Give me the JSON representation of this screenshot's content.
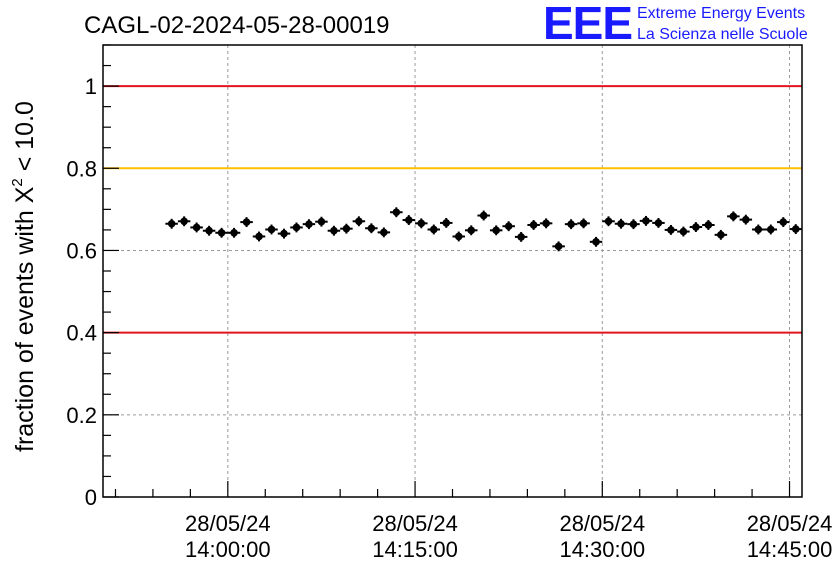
{
  "chart_data": {
    "type": "scatter",
    "title": "CAGL-02-2024-05-28-00019",
    "ylabel_prefix": "fraction of events with ",
    "ylabel_symbol": "X",
    "ylabel_sup": "2",
    "ylabel_suffix": " < 10.0",
    "xlabel": "",
    "ylim": [
      0,
      1.1
    ],
    "xlim_minutes": [
      -10,
      46
    ],
    "grid": true,
    "x_ticks": [
      {
        "minutes": 0,
        "date": "28/05/24",
        "time": "14:00:00"
      },
      {
        "minutes": 15,
        "date": "28/05/24",
        "time": "14:15:00"
      },
      {
        "minutes": 30,
        "date": "28/05/24",
        "time": "14:30:00"
      },
      {
        "minutes": 45,
        "date": "28/05/24",
        "time": "14:45:00"
      }
    ],
    "y_ticks": [
      {
        "value": 0,
        "label": "0"
      },
      {
        "value": 0.2,
        "label": "0.2"
      },
      {
        "value": 0.4,
        "label": "0.4"
      },
      {
        "value": 0.6,
        "label": "0.6"
      },
      {
        "value": 0.8,
        "label": "0.8"
      },
      {
        "value": 1.0,
        "label": "1"
      }
    ],
    "reference_lines": [
      {
        "y": 1.0,
        "color": "#e3141b"
      },
      {
        "y": 0.8,
        "color": "#ffc000"
      },
      {
        "y": 0.4,
        "color": "#e3141b"
      }
    ],
    "points": [
      {
        "x": -4.5,
        "y": 0.665
      },
      {
        "x": -3.5,
        "y": 0.671
      },
      {
        "x": -2.5,
        "y": 0.656
      },
      {
        "x": -1.5,
        "y": 0.648
      },
      {
        "x": -0.5,
        "y": 0.643
      },
      {
        "x": 0.5,
        "y": 0.643
      },
      {
        "x": 1.5,
        "y": 0.669
      },
      {
        "x": 2.5,
        "y": 0.634
      },
      {
        "x": 3.5,
        "y": 0.651
      },
      {
        "x": 4.5,
        "y": 0.641
      },
      {
        "x": 5.5,
        "y": 0.656
      },
      {
        "x": 6.5,
        "y": 0.664
      },
      {
        "x": 7.5,
        "y": 0.67
      },
      {
        "x": 8.5,
        "y": 0.648
      },
      {
        "x": 9.5,
        "y": 0.653
      },
      {
        "x": 10.5,
        "y": 0.671
      },
      {
        "x": 11.5,
        "y": 0.654
      },
      {
        "x": 12.5,
        "y": 0.644
      },
      {
        "x": 13.5,
        "y": 0.693
      },
      {
        "x": 14.5,
        "y": 0.674
      },
      {
        "x": 15.5,
        "y": 0.666
      },
      {
        "x": 16.5,
        "y": 0.651
      },
      {
        "x": 17.5,
        "y": 0.667
      },
      {
        "x": 18.5,
        "y": 0.634
      },
      {
        "x": 19.5,
        "y": 0.649
      },
      {
        "x": 20.5,
        "y": 0.685
      },
      {
        "x": 21.5,
        "y": 0.649
      },
      {
        "x": 22.5,
        "y": 0.659
      },
      {
        "x": 23.5,
        "y": 0.633
      },
      {
        "x": 24.5,
        "y": 0.662
      },
      {
        "x": 25.5,
        "y": 0.666
      },
      {
        "x": 26.5,
        "y": 0.61
      },
      {
        "x": 27.5,
        "y": 0.664
      },
      {
        "x": 28.5,
        "y": 0.666
      },
      {
        "x": 29.5,
        "y": 0.621
      },
      {
        "x": 30.5,
        "y": 0.671
      },
      {
        "x": 31.5,
        "y": 0.665
      },
      {
        "x": 32.5,
        "y": 0.664
      },
      {
        "x": 33.5,
        "y": 0.672
      },
      {
        "x": 34.5,
        "y": 0.667
      },
      {
        "x": 35.5,
        "y": 0.65
      },
      {
        "x": 36.5,
        "y": 0.646
      },
      {
        "x": 37.5,
        "y": 0.657
      },
      {
        "x": 38.5,
        "y": 0.662
      },
      {
        "x": 39.5,
        "y": 0.638
      },
      {
        "x": 40.5,
        "y": 0.683
      },
      {
        "x": 41.5,
        "y": 0.675
      },
      {
        "x": 42.5,
        "y": 0.651
      },
      {
        "x": 43.5,
        "y": 0.651
      },
      {
        "x": 44.5,
        "y": 0.669
      },
      {
        "x": 45.5,
        "y": 0.652
      }
    ],
    "y_error": 0.012,
    "x_halfwidth": 0.5
  },
  "logo": {
    "big": "EEE",
    "line1": "Extreme Energy Events",
    "line2": "La Scienza nelle Scuole",
    "color": "#1a1aff"
  }
}
